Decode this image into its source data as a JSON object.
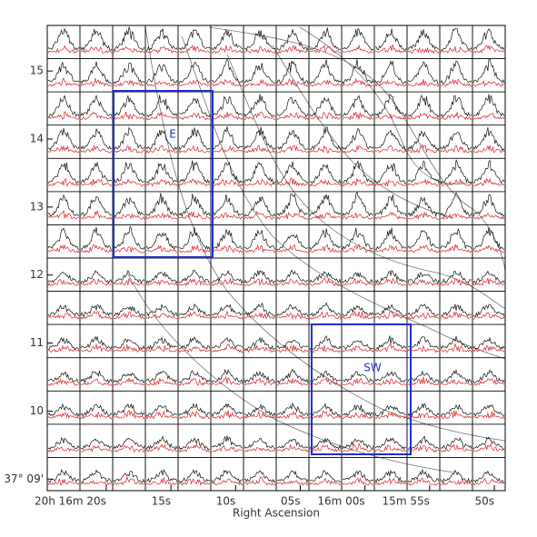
{
  "chart_data": {
    "type": "spectral-grid",
    "x_label": "Right Ascension",
    "xlim": [
      24.56,
      -10.84
    ],
    "xticks": [
      {
        "value": 20,
        "label": "20h 16m 20s"
      },
      {
        "value": 15,
        "label": "15s"
      },
      {
        "value": 10,
        "label": "10s"
      },
      {
        "value": 5,
        "label": "05s"
      },
      {
        "value": 0,
        "label": "16m 00s"
      },
      {
        "value": -5,
        "label": "15m 55s"
      },
      {
        "value": -10,
        "label": "50s"
      }
    ],
    "ylim": [
      8.83,
      15.67
    ],
    "yticks": [
      {
        "value": 9,
        "label": "37° 09'"
      },
      10,
      11,
      12,
      13,
      14,
      15
    ],
    "regions": [
      {
        "label": "E",
        "color": "#1f2fd0"
      },
      {
        "label": "SW",
        "color": "#1f2fd0"
      }
    ]
  }
}
